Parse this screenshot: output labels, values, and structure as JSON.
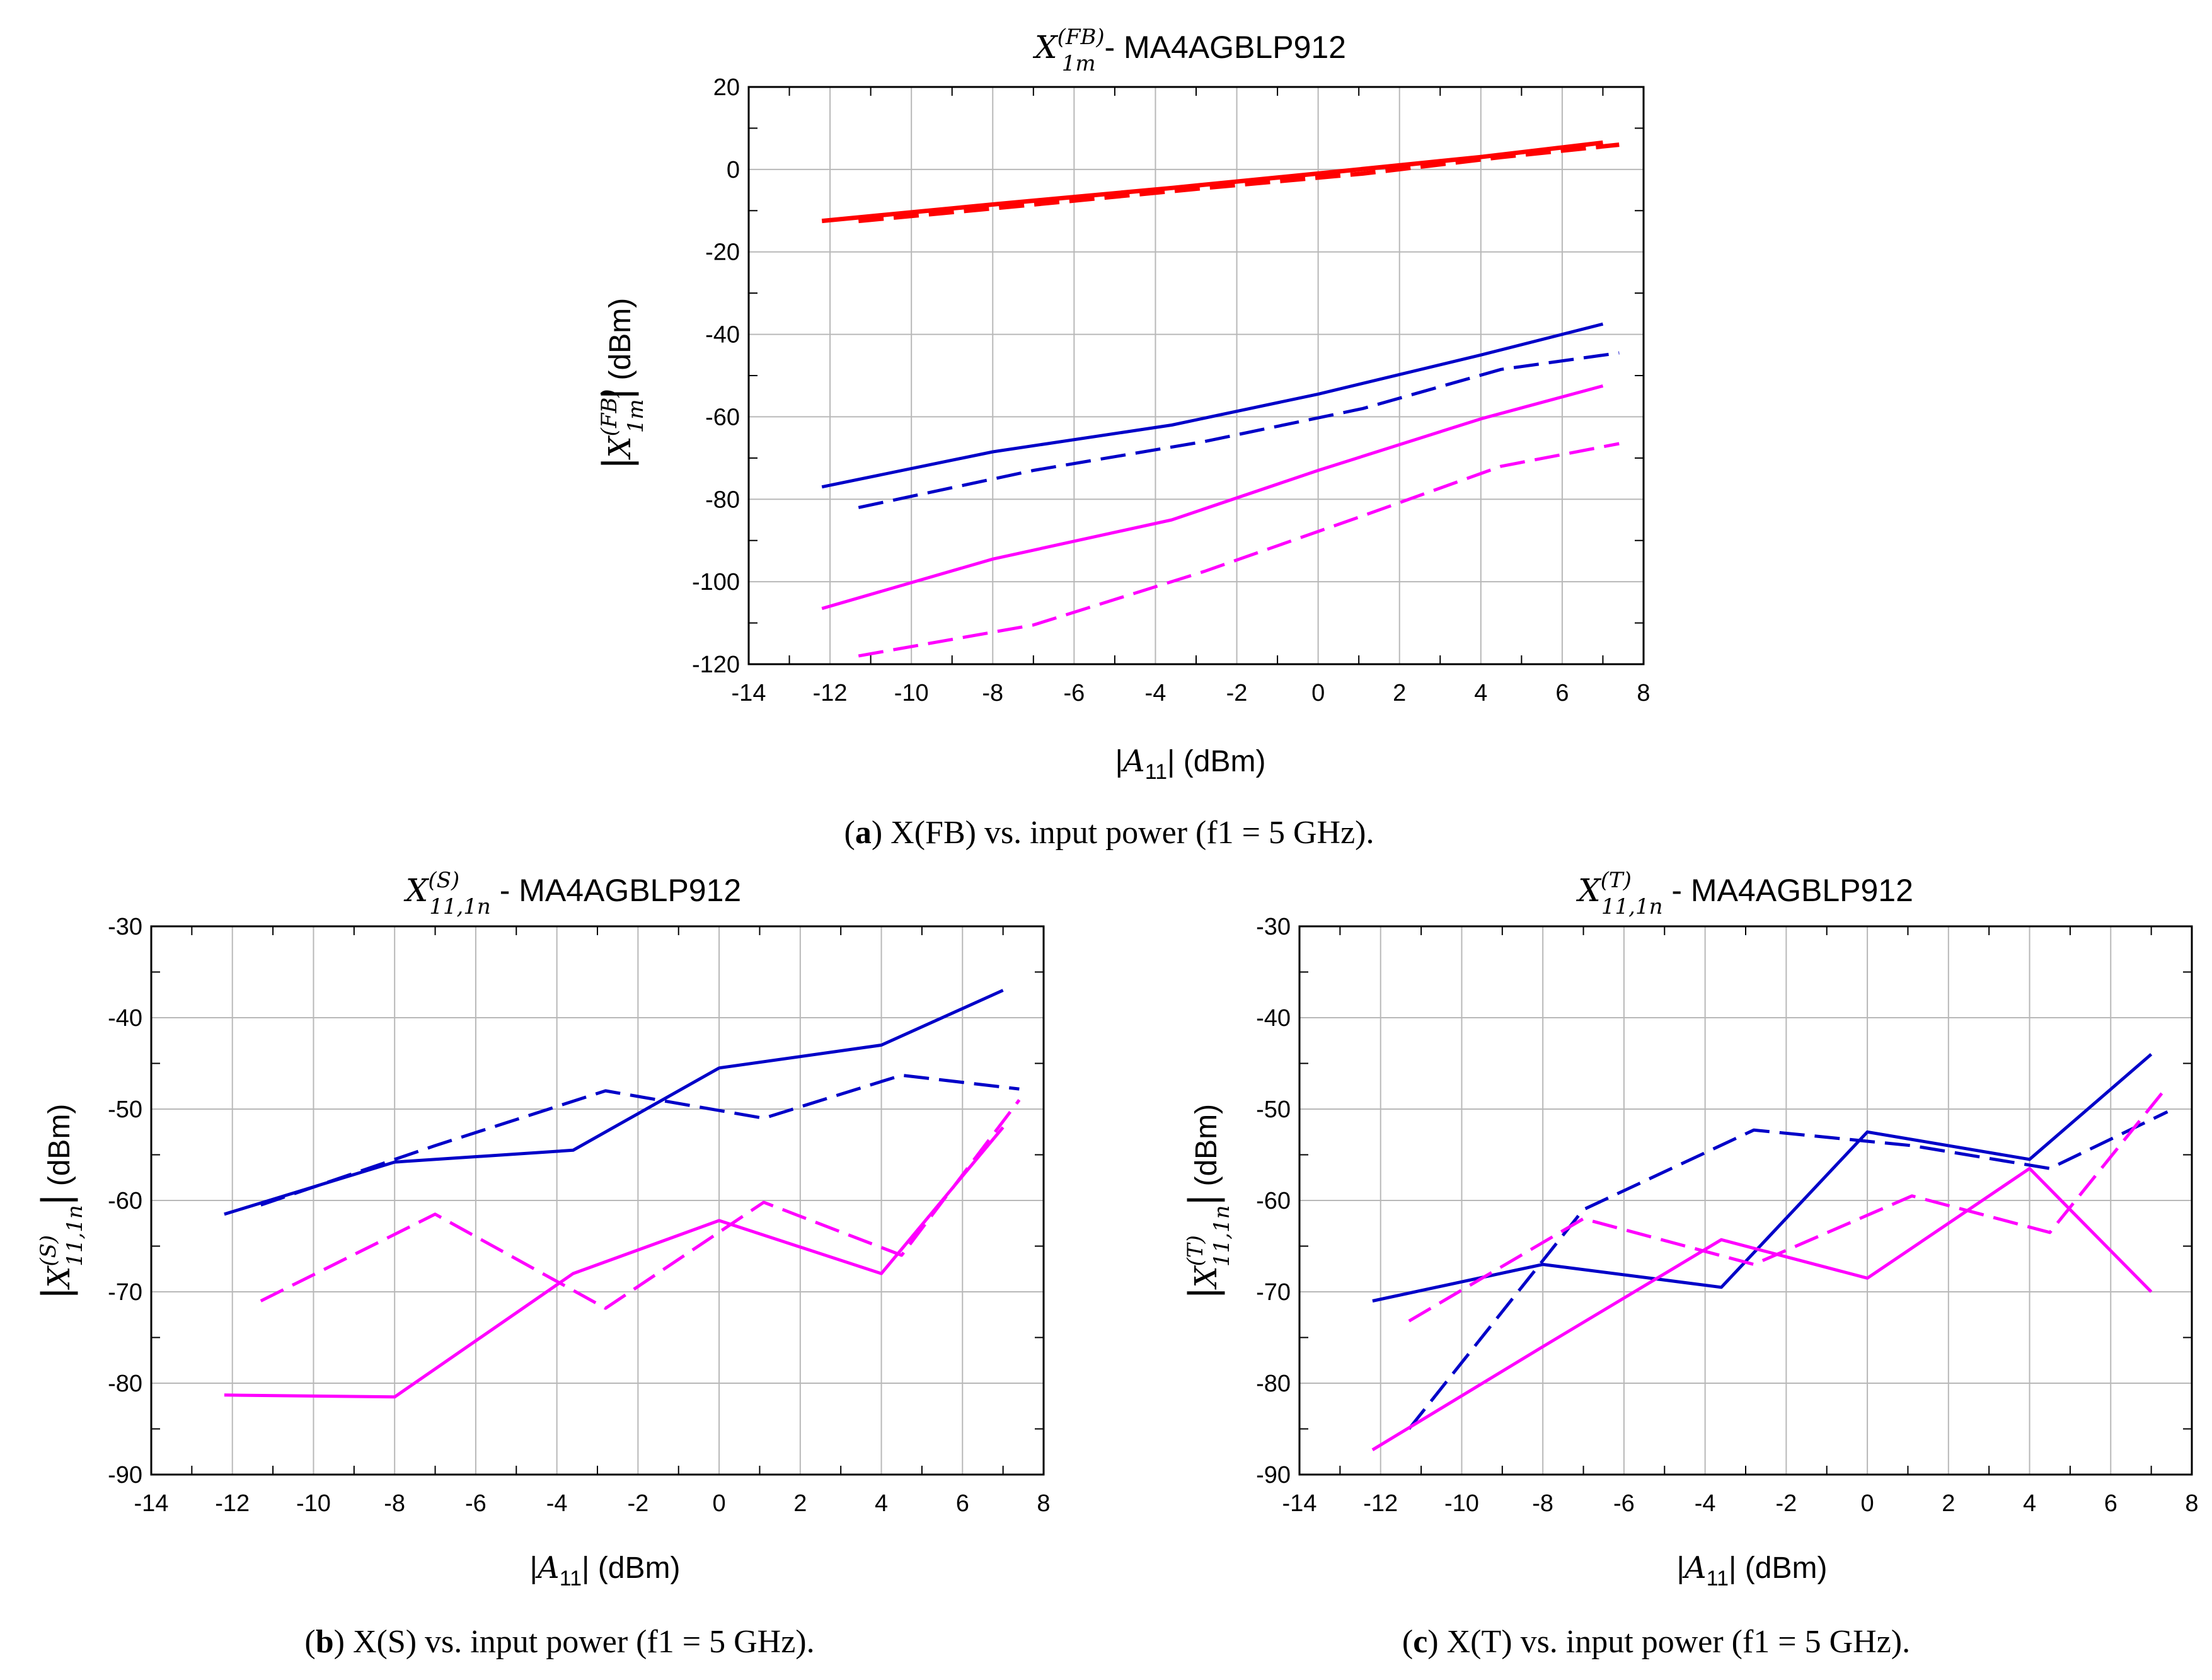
{
  "chart_data": [
    {
      "type": "line",
      "title_math": "X",
      "title_sup": "(FB)",
      "title_sub": "1m",
      "title_suffix": " - MA4AGBLP912",
      "xlabel_math": "A",
      "xlabel_sub": "11",
      "xlabel_suffix": " (dBm)",
      "ylabel_math": "X",
      "ylabel_sup": "(FB)",
      "ylabel_sub": "1m",
      "ylabel_suffix": " (dBm)",
      "xlim": [
        -14,
        8
      ],
      "ylim": [
        -120,
        20
      ],
      "xticks": [
        -14,
        -12,
        -10,
        -8,
        -6,
        -4,
        -2,
        0,
        2,
        4,
        6,
        8
      ],
      "xtick_labels": [
        "-14",
        "-12",
        "-10",
        "-8",
        "-6",
        "-4",
        "-2",
        "0",
        "2",
        "4",
        "6",
        "8"
      ],
      "yticks": [
        -120,
        -100,
        -80,
        -60,
        -40,
        -20,
        0,
        20
      ],
      "ytick_labels": [
        "-120",
        "-100",
        "-80",
        "-60",
        "-40",
        "-20",
        "0",
        "20"
      ],
      "caption_label": "a",
      "caption_text": " X(FB) vs. input power (f1 = 5 GHz).",
      "series": [
        {
          "name": "red-solid",
          "color": "#ff0000",
          "dash": "solid",
          "x": [
            -12.2,
            -8,
            -3.6,
            0,
            4,
            7
          ],
          "y": [
            -12.5,
            -8.5,
            -4.5,
            -1,
            3,
            6.5
          ]
        },
        {
          "name": "red-dashed",
          "color": "#ff0000",
          "dash": "dashed",
          "x": [
            -11.3,
            -7,
            -2.8,
            1.1,
            4.5,
            7.4
          ],
          "y": [
            -12.5,
            -8.5,
            -4.5,
            -1,
            3,
            6
          ]
        },
        {
          "name": "blue-solid",
          "color": "#0000c8",
          "dash": "solid",
          "x": [
            -12.2,
            -8,
            -3.6,
            0,
            4,
            7
          ],
          "y": [
            -77,
            -68.5,
            -62,
            -54.5,
            -45,
            -37.5
          ]
        },
        {
          "name": "blue-dashed",
          "color": "#0000c8",
          "dash": "dashed",
          "x": [
            -11.3,
            -7,
            -2.8,
            1.1,
            4.5,
            7.4
          ],
          "y": [
            -82,
            -73,
            -66,
            -58,
            -48.5,
            -44.5
          ]
        },
        {
          "name": "magenta-solid",
          "color": "#ff00ff",
          "dash": "solid",
          "x": [
            -12.2,
            -8,
            -3.6,
            0,
            4,
            7
          ],
          "y": [
            -106.5,
            -94.5,
            -85,
            -73,
            -60.5,
            -52.5
          ]
        },
        {
          "name": "magenta-dashed",
          "color": "#ff00ff",
          "dash": "dashed",
          "x": [
            -11.3,
            -7,
            -2.8,
            1.1,
            4.5,
            7.4
          ],
          "y": [
            -118,
            -110.5,
            -97.5,
            -84,
            -72,
            -66.5
          ]
        }
      ]
    },
    {
      "type": "line",
      "title_math": "X",
      "title_sup": "(S)",
      "title_sub": "11,1n",
      "title_suffix": " - MA4AGBLP912",
      "xlabel_math": "A",
      "xlabel_sub": "11",
      "xlabel_suffix": " (dBm)",
      "ylabel_math": "X",
      "ylabel_sup": "(S)",
      "ylabel_sub": "11,1n",
      "ylabel_suffix": " (dBm)",
      "xlim": [
        -14,
        8
      ],
      "ylim": [
        -90,
        -30
      ],
      "xticks": [
        -14,
        -12,
        -10,
        -8,
        -6,
        -4,
        -2,
        0,
        2,
        4,
        6,
        8
      ],
      "xtick_labels": [
        "-14",
        "-12",
        "-10",
        "-8",
        "-6",
        "-4",
        "-2",
        "0",
        "2",
        "4",
        "6",
        "8"
      ],
      "yticks": [
        -90,
        -80,
        -70,
        -60,
        -50,
        -40,
        -30
      ],
      "ytick_labels": [
        "-90",
        "-80",
        "-70",
        "-60",
        "-50",
        "-40",
        "-30"
      ],
      "caption_label": "b",
      "caption_text": " X(S) vs. input power (f1 = 5 GHz).",
      "series": [
        {
          "name": "blue-solid",
          "color": "#0000c8",
          "dash": "solid",
          "x": [
            -12.2,
            -8,
            -3.6,
            0,
            4,
            7
          ],
          "y": [
            -61.5,
            -55.8,
            -54.5,
            -45.5,
            -43,
            -37
          ]
        },
        {
          "name": "blue-dashed",
          "color": "#0000c8",
          "dash": "dashed",
          "x": [
            -11.3,
            -7,
            -2.8,
            1.1,
            4.5,
            7.4
          ],
          "y": [
            -60.5,
            -54,
            -48,
            -51,
            -46.3,
            -47.8
          ]
        },
        {
          "name": "magenta-solid",
          "color": "#ff00ff",
          "dash": "solid",
          "x": [
            -12.2,
            -8,
            -3.6,
            0,
            4,
            7
          ],
          "y": [
            -81.3,
            -81.5,
            -68,
            -62.2,
            -68,
            -52
          ]
        },
        {
          "name": "magenta-dashed",
          "color": "#ff00ff",
          "dash": "dashed",
          "x": [
            -11.3,
            -7,
            -2.8,
            1.1,
            4.5,
            7.4
          ],
          "y": [
            -71,
            -61.5,
            -71.8,
            -60.2,
            -66,
            -49
          ]
        }
      ]
    },
    {
      "type": "line",
      "title_math": "X",
      "title_sup": "(T)",
      "title_sub": "11,1n",
      "title_suffix": " - MA4AGBLP912",
      "xlabel_math": "A",
      "xlabel_sub": "11",
      "xlabel_suffix": " (dBm)",
      "ylabel_math": "X",
      "ylabel_sup": "(T)",
      "ylabel_sub": "11,1n",
      "ylabel_suffix": " (dBm)",
      "xlim": [
        -14,
        8
      ],
      "ylim": [
        -90,
        -30
      ],
      "xticks": [
        -14,
        -12,
        -10,
        -8,
        -6,
        -4,
        -2,
        0,
        2,
        4,
        6,
        8
      ],
      "xtick_labels": [
        "-14",
        "-12",
        "-10",
        "-8",
        "-6",
        "-4",
        "-2",
        "0",
        "2",
        "4",
        "6",
        "8"
      ],
      "yticks": [
        -90,
        -80,
        -70,
        -60,
        -50,
        -40,
        -30
      ],
      "ytick_labels": [
        "-90",
        "-80",
        "-70",
        "-60",
        "-50",
        "-40",
        "-30"
      ],
      "caption_label": "c",
      "caption_text": " X(T) vs. input power (f1 = 5 GHz).",
      "series": [
        {
          "name": "blue-solid",
          "color": "#0000c8",
          "dash": "solid",
          "x": [
            -12.2,
            -8,
            -3.6,
            0,
            4,
            7
          ],
          "y": [
            -71,
            -67,
            -69.5,
            -52.5,
            -55.5,
            -44
          ]
        },
        {
          "name": "blue-dashed",
          "color": "#0000c8",
          "dash": "dashed",
          "x": [
            -11.3,
            -7,
            -2.8,
            1.1,
            4.5,
            7.4
          ],
          "y": [
            -85,
            -61,
            -52.3,
            -54,
            -56.5,
            -50.3
          ]
        },
        {
          "name": "magenta-solid",
          "color": "#ff00ff",
          "dash": "solid",
          "x": [
            -12.2,
            -8,
            -3.6,
            0,
            4,
            7
          ],
          "y": [
            -87.3,
            -76,
            -64.3,
            -68.5,
            -56.5,
            -70
          ]
        },
        {
          "name": "magenta-dashed",
          "color": "#ff00ff",
          "dash": "dashed",
          "x": [
            -11.3,
            -7,
            -2.8,
            1.1,
            4.5,
            7.4
          ],
          "y": [
            -73.2,
            -62,
            -67,
            -59.5,
            -63.5,
            -47.5
          ]
        }
      ]
    }
  ]
}
